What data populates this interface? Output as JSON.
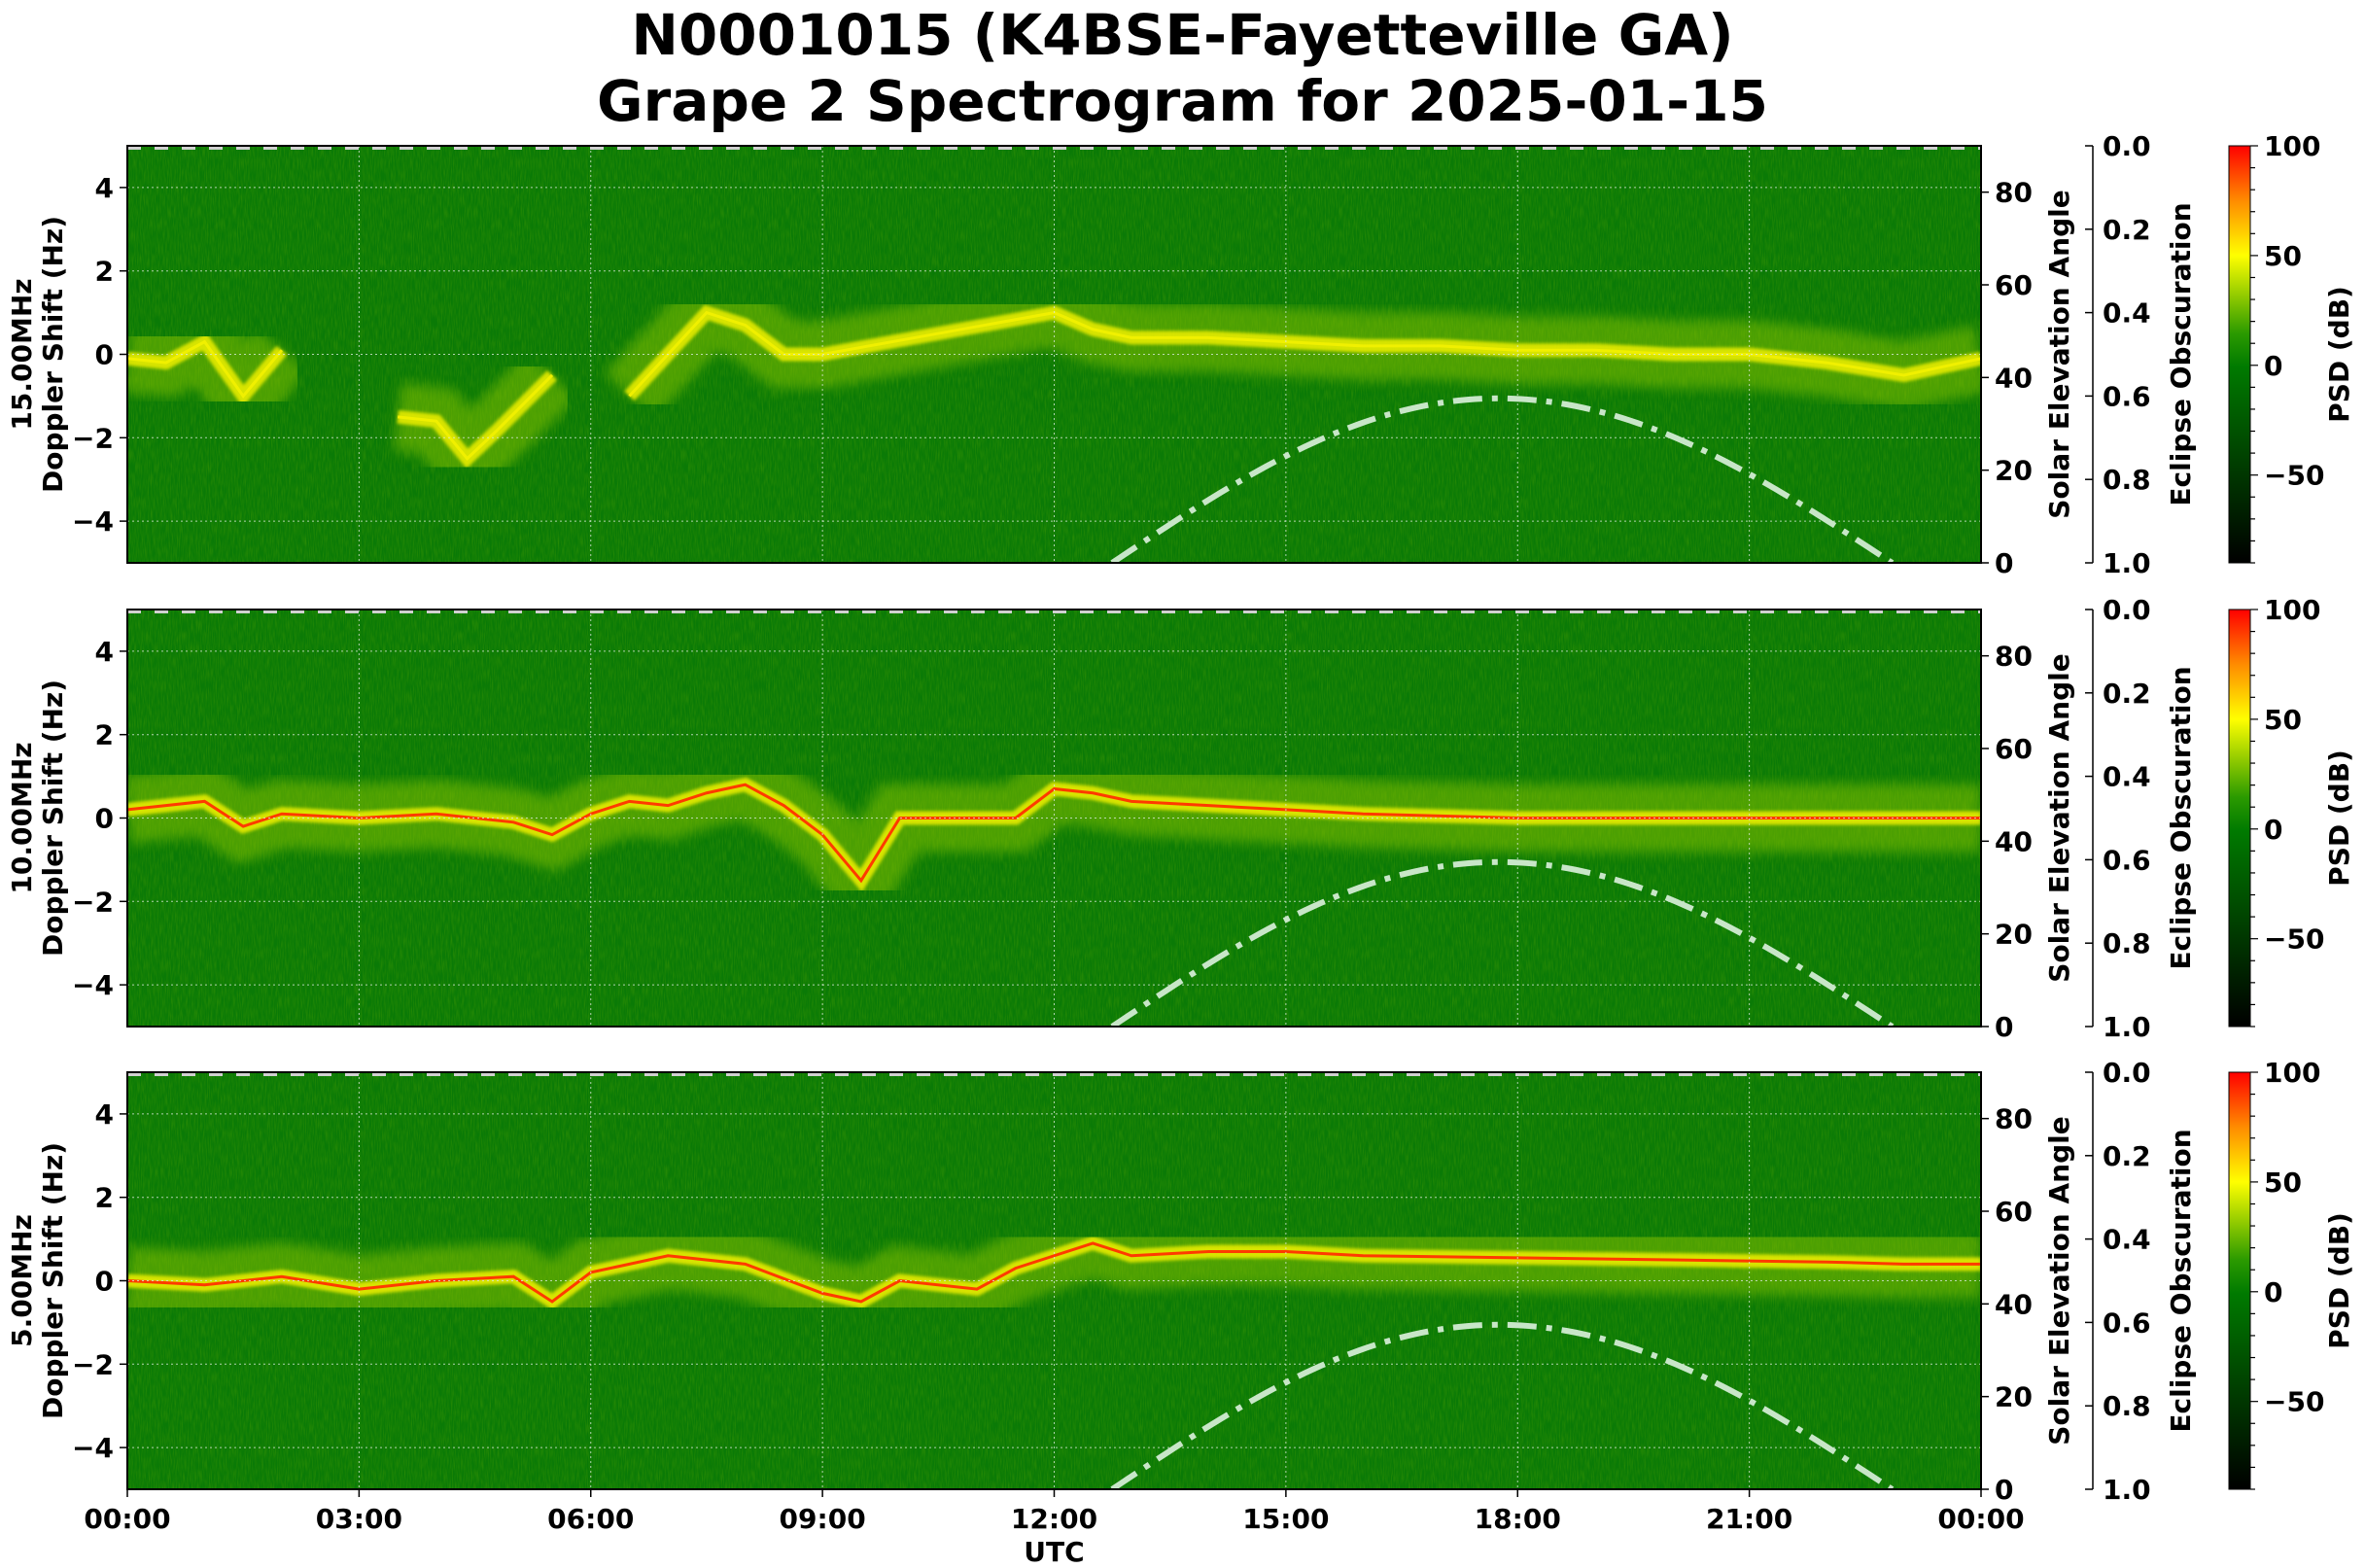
{
  "figure": {
    "title_line1": "N0001015 (K4BSE-Fayetteville GA)",
    "title_line2": "Grape 2 Spectrogram for 2025-01-15",
    "xlabel": "UTC",
    "x_ticks": [
      "00:00",
      "03:00",
      "06:00",
      "09:00",
      "12:00",
      "15:00",
      "18:00",
      "21:00",
      "00:00"
    ]
  },
  "colors": {
    "background_green": "#0a7a06",
    "trace_yellow": "#f0f000",
    "trace_red": "#ff3a00",
    "solar_curve": "#c8e6c8",
    "grid": "#d9e8d9"
  },
  "panels": [
    {
      "id": "15mhz",
      "ylabel_line1": "15.00MHz",
      "ylabel_line2": "Doppler Shift (Hz)",
      "y_ticks": [
        "4",
        "2",
        "0",
        "−2",
        "−4"
      ],
      "right_ylabel": "Solar Elevation Angle",
      "right_ticks": [
        "80",
        "60",
        "40",
        "20",
        "0"
      ],
      "eclipse_label": "Eclipse Obscuration",
      "eclipse_ticks": [
        "0.0",
        "0.2",
        "0.4",
        "0.6",
        "0.8",
        "1.0"
      ],
      "cbar_label": "PSD (dB)",
      "cbar_ticks": [
        "100",
        "50",
        "0",
        "−50"
      ]
    },
    {
      "id": "10mhz",
      "ylabel_line1": "10.00MHz",
      "ylabel_line2": "Doppler Shift (Hz)",
      "y_ticks": [
        "4",
        "2",
        "0",
        "−2",
        "−4"
      ],
      "right_ylabel": "Solar Elevation Angle",
      "right_ticks": [
        "80",
        "60",
        "40",
        "20",
        "0"
      ],
      "eclipse_label": "Eclipse Obscuration",
      "eclipse_ticks": [
        "0.0",
        "0.2",
        "0.4",
        "0.6",
        "0.8",
        "1.0"
      ],
      "cbar_label": "PSD (dB)",
      "cbar_ticks": [
        "100",
        "50",
        "0",
        "−50"
      ]
    },
    {
      "id": "5mhz",
      "ylabel_line1": "5.00MHz",
      "ylabel_line2": "Doppler Shift (Hz)",
      "y_ticks": [
        "4",
        "2",
        "0",
        "−2",
        "−4"
      ],
      "right_ylabel": "Solar Elevation Angle",
      "right_ticks": [
        "80",
        "60",
        "40",
        "20",
        "0"
      ],
      "eclipse_label": "Eclipse Obscuration",
      "eclipse_ticks": [
        "0.0",
        "0.2",
        "0.4",
        "0.6",
        "0.8",
        "1.0"
      ],
      "cbar_label": "PSD (dB)",
      "cbar_ticks": [
        "100",
        "50",
        "0",
        "−50"
      ]
    }
  ],
  "chart_data": [
    {
      "type": "heatmap",
      "title": "N0001015 (K4BSE-Fayetteville GA) Grape 2 Spectrogram for 2025-01-15",
      "subplot": "15.00MHz",
      "xlabel": "UTC",
      "ylabel": "15.00MHz Doppler Shift (Hz)",
      "xlim": [
        0,
        24
      ],
      "ylim": [
        -5,
        5
      ],
      "colorbar": {
        "label": "PSD (dB)",
        "range": [
          -90,
          100
        ],
        "ticks": [
          100,
          50,
          0,
          -50
        ],
        "colormap": [
          "#000000",
          "#007a00",
          "#ffff00",
          "#ff0000"
        ]
      },
      "doppler_trace_hz": {
        "hours": [
          0,
          0.5,
          1.0,
          1.5,
          2.0,
          3.0,
          3.5,
          4.0,
          4.4,
          4.8,
          5.5,
          6.0,
          6.5,
          7.0,
          7.5,
          8.0,
          8.5,
          9.0,
          12.0,
          12.5,
          13.0,
          14.0,
          15.0,
          16.0,
          17.0,
          18.0,
          19.0,
          20.0,
          21.0,
          22.0,
          23.0,
          24.0
        ],
        "values": [
          -0.1,
          -0.2,
          0.3,
          -1.0,
          0.1,
          null,
          -1.5,
          -1.6,
          -2.5,
          -1.8,
          -0.5,
          null,
          -1.0,
          0.0,
          1.0,
          0.7,
          0.0,
          0.0,
          1.0,
          0.6,
          0.4,
          0.4,
          0.3,
          0.2,
          0.2,
          0.1,
          0.1,
          0.0,
          0.0,
          -0.2,
          -0.5,
          -0.1
        ]
      },
      "secondary_axes": {
        "solar_elevation": {
          "label": "Solar Elevation Angle",
          "ylim": [
            0,
            90
          ],
          "ticks": [
            0,
            20,
            40,
            60,
            80
          ],
          "hours": [
            12.75,
            13.5,
            14.5,
            15.5,
            16.5,
            17.5,
            17.75,
            18.5,
            19.5,
            20.5,
            21.5,
            22.5,
            22.85
          ],
          "values": [
            0,
            8.5,
            18.5,
            26.5,
            32.5,
            35.4,
            35.5,
            34.6,
            30.5,
            23.5,
            14.5,
            4,
            0
          ]
        },
        "eclipse_obscuration": {
          "label": "Eclipse Obscuration",
          "ylim": [
            1.0,
            0.0
          ],
          "ticks": [
            0.0,
            0.2,
            0.4,
            0.6,
            0.8,
            1.0
          ],
          "values": "0.0 (no eclipse, flat at top)"
        }
      }
    },
    {
      "type": "heatmap",
      "subplot": "10.00MHz",
      "xlabel": "UTC",
      "ylabel": "10.00MHz Doppler Shift (Hz)",
      "xlim": [
        0,
        24
      ],
      "ylim": [
        -5,
        5
      ],
      "colorbar": {
        "label": "PSD (dB)",
        "range": [
          -90,
          100
        ],
        "ticks": [
          100,
          50,
          0,
          -50
        ]
      },
      "doppler_trace_hz": {
        "hours": [
          0,
          0.5,
          1.0,
          1.5,
          2.0,
          3.0,
          4.0,
          5.0,
          5.5,
          6.0,
          6.5,
          7.0,
          7.5,
          8.0,
          8.5,
          9.0,
          9.5,
          10.0,
          11.0,
          11.5,
          12.0,
          12.5,
          13.0,
          14.0,
          15.0,
          16.0,
          18.0,
          20.0,
          22.0,
          24.0
        ],
        "values": [
          0.2,
          0.3,
          0.4,
          -0.2,
          0.1,
          0.0,
          0.1,
          -0.1,
          -0.4,
          0.1,
          0.4,
          0.3,
          0.6,
          0.8,
          0.3,
          -0.4,
          -1.5,
          0.0,
          0.0,
          0.0,
          0.7,
          0.6,
          0.4,
          0.3,
          0.2,
          0.1,
          0.0,
          0.0,
          0.0,
          0.0
        ]
      },
      "secondary_axes": {
        "solar_elevation": {
          "label": "Solar Elevation Angle",
          "ylim": [
            0,
            90
          ],
          "peak_deg": 35.5,
          "peak_hour": 17.75,
          "rise_hour": 12.75,
          "set_hour": 22.85
        },
        "eclipse_obscuration": {
          "label": "Eclipse Obscuration",
          "ylim": [
            1.0,
            0.0
          ]
        }
      }
    },
    {
      "type": "heatmap",
      "subplot": "5.00MHz",
      "xlabel": "UTC",
      "ylabel": "5.00MHz Doppler Shift (Hz)",
      "xlim": [
        0,
        24
      ],
      "ylim": [
        -5,
        5
      ],
      "colorbar": {
        "label": "PSD (dB)",
        "range": [
          -90,
          100
        ],
        "ticks": [
          100,
          50,
          0,
          -50
        ]
      },
      "doppler_trace_hz": {
        "hours": [
          0,
          1.0,
          2.0,
          3.0,
          4.0,
          5.0,
          5.5,
          6.0,
          7.0,
          8.0,
          9.0,
          9.5,
          10.0,
          11.0,
          11.5,
          12.0,
          12.5,
          13.0,
          14.0,
          15.0,
          16.0,
          18.0,
          20.0,
          22.0,
          23.0,
          24.0
        ],
        "values": [
          0.0,
          -0.1,
          0.1,
          -0.2,
          0.0,
          0.1,
          -0.5,
          0.2,
          0.6,
          0.4,
          -0.3,
          -0.5,
          0.0,
          -0.2,
          0.3,
          0.6,
          0.9,
          0.6,
          0.7,
          0.7,
          0.6,
          0.55,
          0.5,
          0.45,
          0.4,
          0.4
        ]
      },
      "secondary_axes": {
        "solar_elevation": {
          "label": "Solar Elevation Angle",
          "ylim": [
            0,
            90
          ],
          "peak_deg": 35.5,
          "peak_hour": 17.75,
          "rise_hour": 12.75,
          "set_hour": 22.85
        },
        "eclipse_obscuration": {
          "label": "Eclipse Obscuration",
          "ylim": [
            1.0,
            0.0
          ]
        }
      }
    }
  ]
}
